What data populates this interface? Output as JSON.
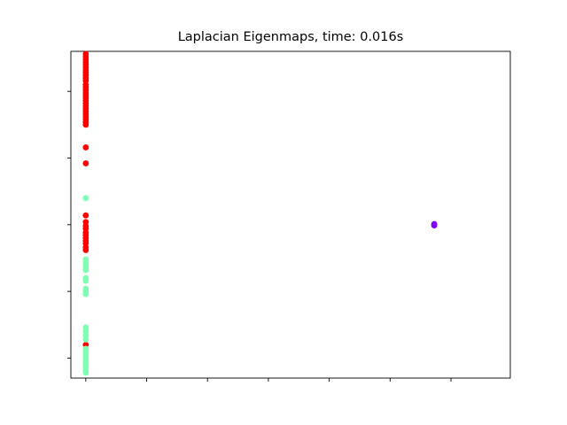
{
  "chart_data": {
    "type": "scatter",
    "title": "Laplacian Eigenmaps, time: 0.016s",
    "xlabel": "",
    "ylabel": "",
    "grid": false,
    "legend": "none",
    "xlim": [
      -0.098,
      2.79
    ],
    "ylim": [
      -1.15,
      1.3
    ],
    "x_ticks": [
      0,
      0.4,
      0.8,
      1.2,
      1.6,
      2.0,
      2.4
    ],
    "y_ticks": [
      -1.0,
      -0.5,
      0.0,
      0.5,
      1.0
    ],
    "series": [
      {
        "color": "#ff0000",
        "points": [
          [
            0.0,
            1.28
          ],
          [
            0.0,
            1.26
          ],
          [
            0.0,
            1.24
          ],
          [
            0.0,
            1.22
          ],
          [
            0.0,
            1.2
          ],
          [
            0.0,
            1.18
          ],
          [
            0.0,
            1.16
          ],
          [
            0.0,
            1.14
          ],
          [
            0.0,
            1.12
          ],
          [
            0.0,
            1.1
          ],
          [
            0.0,
            1.08
          ],
          [
            0.0,
            1.05
          ],
          [
            0.0,
            1.03
          ],
          [
            0.0,
            1.01
          ],
          [
            0.0,
            0.99
          ],
          [
            0.0,
            0.97
          ],
          [
            0.0,
            0.95
          ],
          [
            0.0,
            0.93
          ],
          [
            0.0,
            0.91
          ],
          [
            0.0,
            0.89
          ],
          [
            0.0,
            0.87
          ],
          [
            0.0,
            0.85
          ],
          [
            0.0,
            0.83
          ],
          [
            0.0,
            0.81
          ],
          [
            0.0,
            0.79
          ],
          [
            0.0,
            0.77
          ],
          [
            0.0,
            0.75
          ],
          [
            0.0,
            0.58
          ],
          [
            0.0,
            0.46
          ],
          [
            0.0,
            0.07
          ],
          [
            0.0,
            0.02
          ],
          [
            0.0,
            -0.01
          ],
          [
            0.0,
            -0.03
          ],
          [
            0.0,
            -0.06
          ],
          [
            0.0,
            -0.08
          ],
          [
            0.0,
            -0.1
          ],
          [
            0.0,
            -0.12
          ],
          [
            0.0,
            -0.14
          ],
          [
            0.0,
            -0.17
          ],
          [
            0.0,
            -0.19
          ],
          [
            0.0,
            -0.9
          ]
        ]
      },
      {
        "color": "#80ffb4",
        "points": [
          [
            0.0,
            0.2
          ],
          [
            0.0,
            -0.26
          ],
          [
            0.0,
            -0.28
          ],
          [
            0.0,
            -0.3
          ],
          [
            0.0,
            -0.32
          ],
          [
            0.0,
            -0.34
          ],
          [
            0.0,
            -0.4
          ],
          [
            0.0,
            -0.42
          ],
          [
            0.0,
            -0.48
          ],
          [
            0.0,
            -0.5
          ],
          [
            0.0,
            -0.52
          ],
          [
            0.0,
            -0.77
          ],
          [
            0.0,
            -0.8
          ],
          [
            0.0,
            -0.83
          ],
          [
            0.0,
            -0.86
          ],
          [
            0.0,
            -0.93
          ],
          [
            0.0,
            -0.95
          ],
          [
            0.0,
            -0.97
          ],
          [
            0.0,
            -0.99
          ],
          [
            0.0,
            -1.01
          ],
          [
            0.0,
            -1.03
          ],
          [
            0.0,
            -1.05
          ],
          [
            0.0,
            -1.07
          ],
          [
            0.0,
            -1.09
          ],
          [
            0.0,
            -1.11
          ]
        ]
      },
      {
        "color": "#8000ff",
        "points": [
          [
            2.29,
            0.0
          ],
          [
            2.29,
            0.005
          ],
          [
            2.29,
            -0.005
          ]
        ]
      }
    ]
  }
}
